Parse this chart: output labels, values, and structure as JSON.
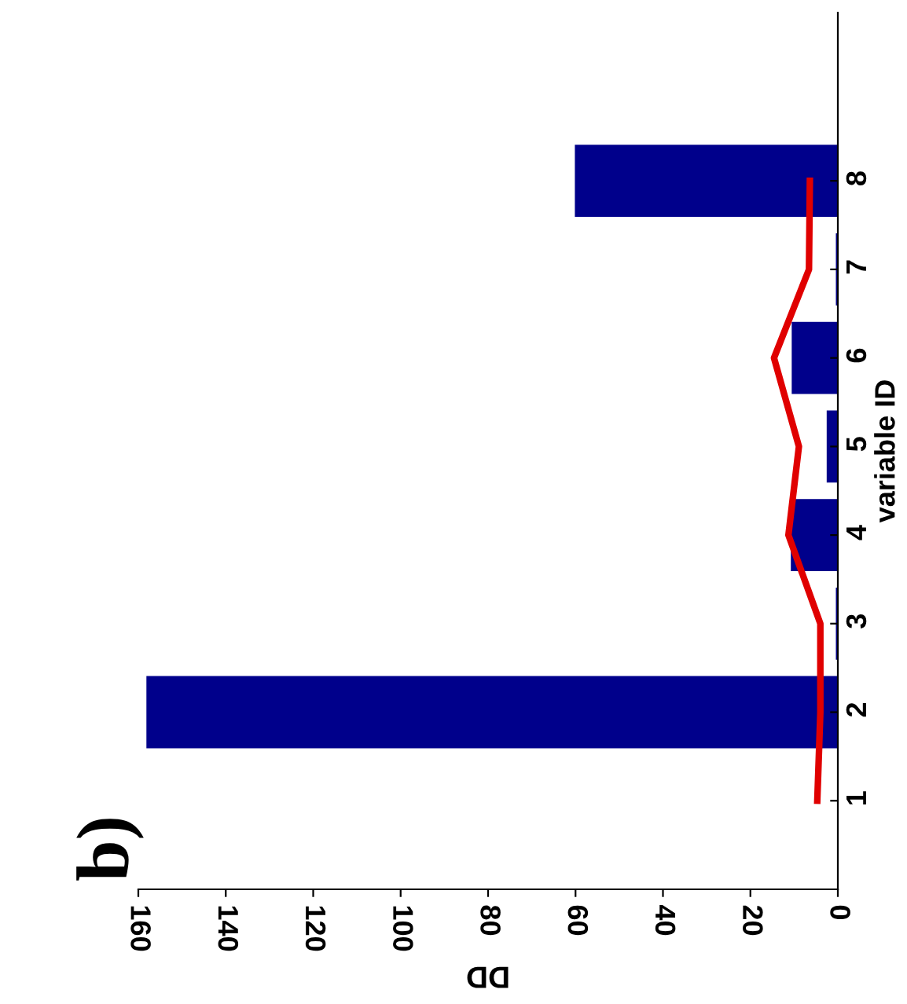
{
  "chart_data": {
    "type": "bar",
    "title": "b)",
    "orientation": "horizontal",
    "xlabel": "DD",
    "ylabel": "variable ID",
    "categories": [
      "8",
      "7",
      "6",
      "5",
      "4",
      "3",
      "2",
      "1"
    ],
    "series": [
      {
        "color": "#00008b",
        "values": [
          60,
          0.3,
          10.4,
          2.4,
          10.6,
          0.3,
          158,
          0
        ]
      },
      {
        "type": "line",
        "color": "#e00000",
        "values": [
          6.4,
          6.6,
          14.6,
          8.9,
          11.3,
          4,
          4,
          4.7
        ]
      }
    ],
    "xlim": [
      160,
      0
    ],
    "xticks": [
      0,
      20,
      40,
      60,
      80,
      100,
      120,
      140,
      160
    ],
    "grid": false,
    "legend": false,
    "marker": "none",
    "line_style": "solid"
  }
}
